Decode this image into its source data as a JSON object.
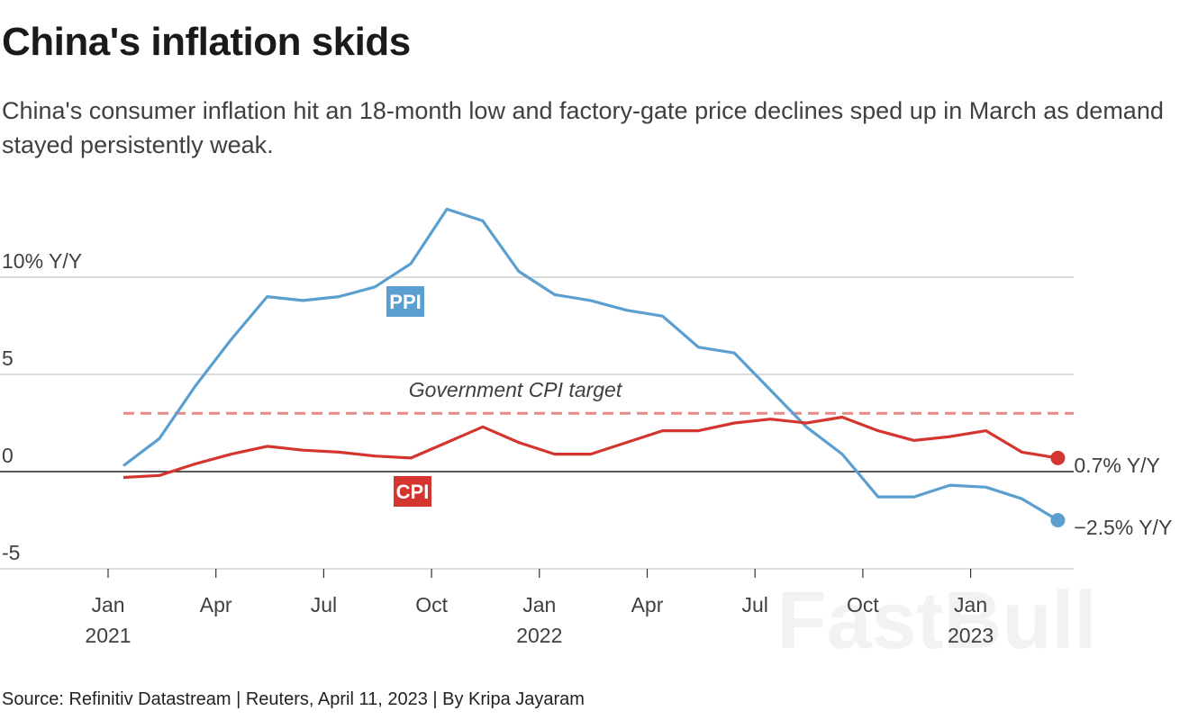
{
  "title": "China's inflation skids",
  "subtitle": "China's consumer inflation hit an 18-month low and factory-gate price declines sped up in March as demand stayed persistently weak.",
  "source": "Source: Refinitiv Datastream | Reuters, April 11, 2023 | By Kripa Jayaram",
  "watermark": "FastBull",
  "chart_data": {
    "type": "line",
    "title": "China's inflation skids",
    "ylim": [
      -5,
      14
    ],
    "y_ticks": [
      {
        "value": 10,
        "label": "10% Y/Y"
      },
      {
        "value": 5,
        "label": "5"
      },
      {
        "value": 0,
        "label": "0"
      },
      {
        "value": -5,
        "label": "-5"
      }
    ],
    "grid": true,
    "x": [
      "2021-01",
      "2021-02",
      "2021-03",
      "2021-04",
      "2021-05",
      "2021-06",
      "2021-07",
      "2021-08",
      "2021-09",
      "2021-10",
      "2021-11",
      "2021-12",
      "2022-01",
      "2022-02",
      "2022-03",
      "2022-04",
      "2022-05",
      "2022-06",
      "2022-07",
      "2022-08",
      "2022-09",
      "2022-10",
      "2022-11",
      "2022-12",
      "2023-01",
      "2023-02",
      "2023-03"
    ],
    "x_ticks": [
      {
        "label": "Jan",
        "year": "2021"
      },
      {
        "label": "Apr",
        "year": ""
      },
      {
        "label": "Jul",
        "year": ""
      },
      {
        "label": "Oct",
        "year": ""
      },
      {
        "label": "Jan",
        "year": "2022"
      },
      {
        "label": "Apr",
        "year": ""
      },
      {
        "label": "Jul",
        "year": ""
      },
      {
        "label": "Oct",
        "year": ""
      },
      {
        "label": "Jan",
        "year": "2023"
      }
    ],
    "series": [
      {
        "name": "PPI",
        "color": "#5b9fd0",
        "end_label": "−2.5% Y/Y",
        "values": [
          0.3,
          1.7,
          4.4,
          6.8,
          9.0,
          8.8,
          9.0,
          9.5,
          10.7,
          13.5,
          12.9,
          10.3,
          9.1,
          8.8,
          8.3,
          8.0,
          6.4,
          6.1,
          4.2,
          2.3,
          0.9,
          -1.3,
          -1.3,
          -0.7,
          -0.8,
          -1.4,
          -2.5
        ]
      },
      {
        "name": "CPI",
        "color": "#d4362f",
        "end_label": "0.7% Y/Y",
        "values": [
          -0.3,
          -0.2,
          0.4,
          0.9,
          1.3,
          1.1,
          1.0,
          0.8,
          0.7,
          1.5,
          2.3,
          1.5,
          0.9,
          0.9,
          1.5,
          2.1,
          2.1,
          2.5,
          2.7,
          2.5,
          2.8,
          2.1,
          1.6,
          1.8,
          2.1,
          1.0,
          0.7
        ]
      }
    ],
    "reference_line": {
      "value": 3,
      "label": "Government CPI target",
      "color": "#e58a84",
      "style": "dashed"
    }
  }
}
